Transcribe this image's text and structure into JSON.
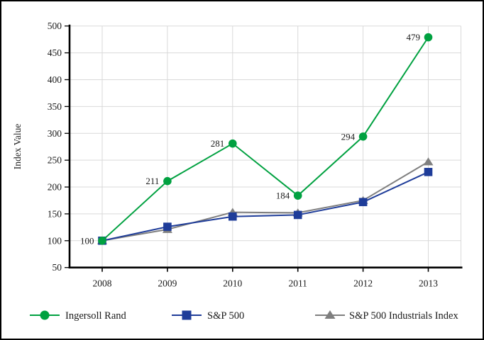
{
  "chart_data": {
    "type": "line",
    "title": "",
    "xlabel": "",
    "ylabel": "Index Value",
    "categories": [
      "2008",
      "2009",
      "2010",
      "2011",
      "2012",
      "2013"
    ],
    "ylim": [
      50,
      500
    ],
    "yticks": [
      50,
      100,
      150,
      200,
      250,
      300,
      350,
      400,
      450,
      500
    ],
    "grid": true,
    "legend_position": "bottom",
    "series": [
      {
        "name": "Ingersoll Rand",
        "marker": "circle",
        "color": "#00A140",
        "values": [
          100,
          211,
          281,
          184,
          294,
          479
        ],
        "point_labels": true
      },
      {
        "name": "S&P 500",
        "marker": "square",
        "color": "#1E3C99",
        "values": [
          100,
          126,
          145,
          148,
          172,
          228
        ],
        "point_labels": false
      },
      {
        "name": "S&P 500 Industrials Index",
        "marker": "triangle",
        "color": "#7F7F7F",
        "values": [
          100,
          121,
          153,
          152,
          175,
          247
        ],
        "point_labels": false
      }
    ]
  },
  "style": {
    "background": "#FFFFFF",
    "border_color": "#000000",
    "grid_color": "#D9D9D9",
    "axis_color": "#000000",
    "text_color": "#1A1A1A"
  }
}
